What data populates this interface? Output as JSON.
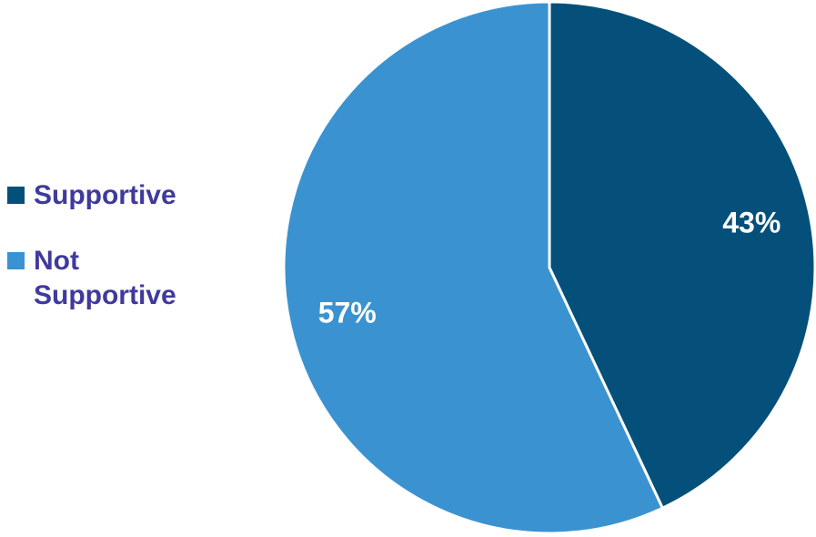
{
  "chart_data": {
    "type": "pie",
    "categories": [
      "Supportive",
      "Not Supportive"
    ],
    "values": [
      43,
      57
    ],
    "data_labels": [
      "43%",
      "57%"
    ],
    "colors": [
      "#04507a",
      "#3a93d0"
    ],
    "legend_position": "left",
    "title": ""
  }
}
